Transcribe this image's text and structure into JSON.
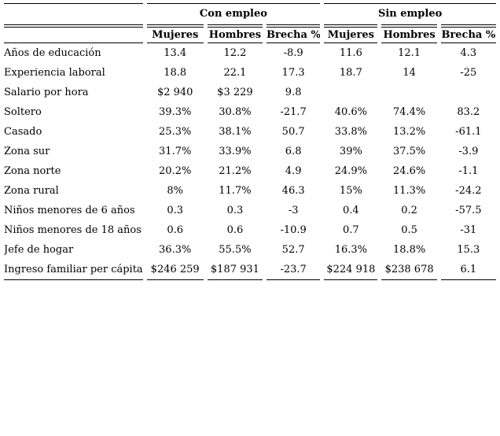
{
  "table": {
    "groups": [
      {
        "label": "Con empleo"
      },
      {
        "label": "Sin empleo"
      }
    ],
    "columns": [
      "Mujeres",
      "Hombres",
      "Brecha %",
      "Mujeres",
      "Hombres",
      "Brecha %"
    ],
    "rows": [
      {
        "label": "Años de educación",
        "values": [
          "13.4",
          "12.2",
          "-8.9",
          "11.6",
          "12.1",
          "4.3"
        ]
      },
      {
        "label": "Experiencia laboral",
        "values": [
          "18.8",
          "22.1",
          "17.3",
          "18.7",
          "14",
          "-25"
        ]
      },
      {
        "label": "Salario por hora",
        "values": [
          "$2 940",
          "$3 229",
          "9.8",
          "",
          "",
          ""
        ]
      },
      {
        "label": "Soltero",
        "values": [
          "39.3%",
          "30.8%",
          "-21.7",
          "40.6%",
          "74.4%",
          "83.2"
        ]
      },
      {
        "label": "Casado",
        "values": [
          "25.3%",
          "38.1%",
          "50.7",
          "33.8%",
          "13.2%",
          "-61.1"
        ]
      },
      {
        "label": "Zona sur",
        "values": [
          "31.7%",
          "33.9%",
          "6.8",
          "39%",
          "37.5%",
          "-3.9"
        ]
      },
      {
        "label": "Zona norte",
        "values": [
          "20.2%",
          "21.2%",
          "4.9",
          "24.9%",
          "24.6%",
          "-1.1"
        ]
      },
      {
        "label": "Zona rural",
        "values": [
          "8%",
          "11.7%",
          "46.3",
          "15%",
          "11.3%",
          "-24.2"
        ]
      },
      {
        "label": "Niños menores de 6 años",
        "values": [
          "0.3",
          "0.3",
          "-3",
          "0.4",
          "0.2",
          "-57.5"
        ]
      },
      {
        "label": "Niños menores de 18 años",
        "values": [
          "0.6",
          "0.6",
          "-10.9",
          "0.7",
          "0.5",
          "-31"
        ]
      },
      {
        "label": "Jefe de hogar",
        "values": [
          "36.3%",
          "55.5%",
          "52.7",
          "16.3%",
          "18.8%",
          "15.3"
        ]
      },
      {
        "label": "Ingreso familiar per cápita",
        "values": [
          "$246 259",
          "$187 931",
          "-23.7",
          "$224 918",
          "$238 678",
          "6.1"
        ]
      }
    ],
    "colors": {
      "text": "#000000",
      "background": "#ffffff",
      "rule": "#000000"
    }
  }
}
